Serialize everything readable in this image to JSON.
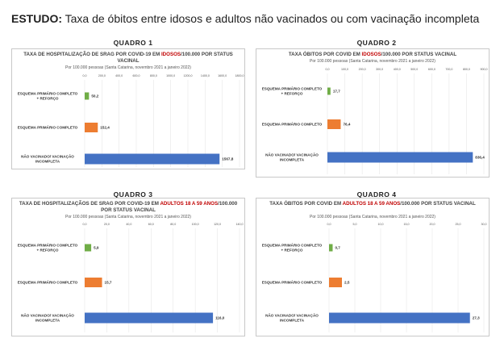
{
  "page_title": {
    "lead": "ESTUDO:",
    "rest": " Taxa de óbitos entre idosos e adultos não vacinados ou com vacinação incompleta"
  },
  "colors": {
    "green": "#70ad47",
    "orange": "#ed7d31",
    "blue": "#4472c4",
    "highlight": "#c00000"
  },
  "chart_data": [
    {
      "type": "bar",
      "quadro": "QUADRO 1",
      "title_parts": [
        "TAXA DE HOSPITALIZAÇÃO DE SRAG POR COVID-19 EM ",
        "IDOSOS",
        "/100.000 POR STATUS VACINAL"
      ],
      "subtitle": "Por 100.000 pessoas (Santa Catarina, novembro 2021 a janeiro 2022)",
      "categories": [
        "ESQUEMA PRIMÁRIO COMPLETO + REFORÇO",
        "ESQUEMA PRIMÁRIO COMPLETO",
        "NÃO VACINADO/ VACINAÇÃO INCOMPLETA"
      ],
      "values": [
        50.2,
        152.4,
        1567.8
      ],
      "value_labels": [
        "50,2",
        "152,4",
        "1567,8"
      ],
      "ticks": [
        "0,0",
        "200,0",
        "400,0",
        "600,0",
        "800,0",
        "1000,0",
        "1200,0",
        "1400,0",
        "1600,0",
        "1800,0"
      ],
      "xlim": [
        0,
        1800
      ]
    },
    {
      "type": "bar",
      "quadro": "QUADRO 2",
      "title_parts": [
        "TAXA ÓBITOS POR COVID EM ",
        "IDOSOS",
        "/100.000 POR STATUS VACINAL"
      ],
      "subtitle": "Por 100.000 pessoas (Santa Catarina, novembro 2021 a janeiro 2022)",
      "categories": [
        "ESQUEMA PRIMÁRIO COMPLETO + REFORÇO",
        "ESQUEMA PRIMÁRIO COMPLETO",
        "NÃO VACINADO/ VACINAÇÃO INCOMPLETA"
      ],
      "values": [
        17.7,
        76.4,
        836.4
      ],
      "value_labels": [
        "17,7",
        "76,4",
        "836,4"
      ],
      "ticks": [
        "0,0",
        "100,0",
        "200,0",
        "300,0",
        "400,0",
        "500,0",
        "600,0",
        "700,0",
        "800,0",
        "900,0"
      ],
      "xlim": [
        0,
        900
      ]
    },
    {
      "type": "bar",
      "quadro": "QUADRO 3",
      "title_parts": [
        "TAXA DE HOSPITALIZAÇÃOS DE SRAG POR COVID-19 EM ",
        "ADULTOS 18 A 59 ANOS",
        "/100.000 POR STATUS VACINAL"
      ],
      "subtitle": "Por 100.000 pessoas (Santa Catarina, novembro 2021 a janeiro 2022)",
      "categories": [
        "ESQUEMA PRIMÁRIO COMPLETO + REFORÇO",
        "ESQUEMA PRIMÁRIO COMPLETO",
        "NÃO VACINADO/ VACINAÇÃO INCOMPLETA"
      ],
      "values": [
        5.9,
        15.7,
        116.0
      ],
      "value_labels": [
        "5,9",
        "15,7",
        "116,0"
      ],
      "ticks": [
        "0,0",
        "20,0",
        "40,0",
        "60,0",
        "80,0",
        "100,0",
        "120,0",
        "140,0"
      ],
      "xlim": [
        0,
        140
      ]
    },
    {
      "type": "bar",
      "quadro": "QUADRO 4",
      "title_parts": [
        "TAXA ÓBITOS POR COVID EM ",
        "ADULTOS 18 A 59 ANOS",
        "/100.000 POR STATUS VACINAL"
      ],
      "subtitle": "Por 100.000 pessoas (Santa Catarina, novembro 2021 a janeiro 2022)",
      "categories": [
        "ESQUEMA PRIMÁRIO COMPLETO + REFORÇO",
        "ESQUEMA PRIMÁRIO COMPLETO",
        "NÃO VACINADO/ VACINAÇÃO INCOMPLETA"
      ],
      "values": [
        0.7,
        2.5,
        27.3
      ],
      "value_labels": [
        "0,7",
        "2,5",
        "27,3"
      ],
      "ticks": [
        "0,0",
        "5,0",
        "10,0",
        "15,0",
        "20,0",
        "25,0",
        "30,0"
      ],
      "xlim": [
        0,
        30
      ]
    }
  ]
}
